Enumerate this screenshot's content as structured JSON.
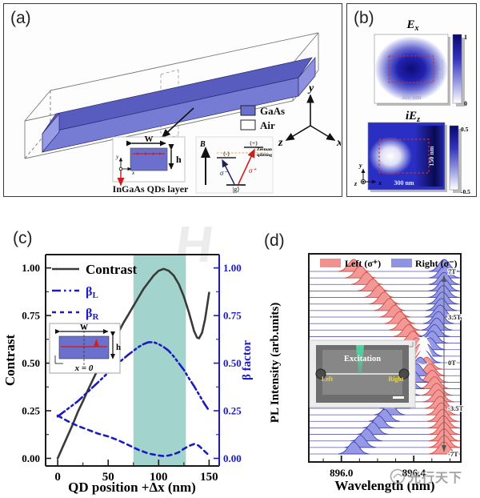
{
  "panels": {
    "a": {
      "label": "(a)",
      "legend": [
        {
          "label": "GaAs",
          "color": "#6a70cc"
        },
        {
          "label": "Air",
          "color": "#ffffff"
        }
      ],
      "axes": {
        "x": "x",
        "y": "y",
        "z": "z"
      },
      "inset_cross_section": {
        "width_label": "W",
        "height_label": "h",
        "axis_x": "x",
        "axis_y": "y",
        "caption": "InGaAs QDs layer"
      },
      "inset_zeeman": {
        "b_label": "B",
        "upper_minus": "(-)",
        "upper_plus": "(+)",
        "sigma_minus": "σ⁻",
        "sigma_plus": "σ⁺",
        "ground": "|g⟩",
        "splitting_line1": "Zeeman",
        "splitting_line2": "splitting"
      }
    },
    "b": {
      "label": "(b)",
      "maps": [
        {
          "title_main": "E",
          "title_sub": "x",
          "scale_w": "300 nm",
          "scale_h": "150 nm",
          "cbar_max": "1",
          "cbar_min": "0"
        },
        {
          "title_main": "iE",
          "title_sub": "z",
          "scale_w": "300 nm",
          "scale_h": "150 nm",
          "cbar_max": "0.5",
          "cbar_min": "-0.5"
        }
      ],
      "axes": {
        "x": "x",
        "y": "y",
        "z": "z"
      }
    },
    "c": {
      "label": "(c)",
      "legend": {
        "contrast": "Contrast",
        "beta_base": "β",
        "beta_L_sub": "L",
        "beta_R_sub": "R"
      },
      "inset": {
        "width_label": "W",
        "height_label": "h",
        "origin_label": "x = 0"
      },
      "ylabel_left": "Contrast",
      "ylabel_right": "β factor",
      "xlabel": "QD position  +Δx (nm)"
    },
    "d": {
      "label": "(d)",
      "legend": [
        {
          "name": "Left (σ⁺)",
          "color": "#f2928e"
        },
        {
          "name": "Right (σ⁻)",
          "color": "#9093e2"
        }
      ],
      "inset": {
        "excitation": "Excitation",
        "left": "Left",
        "right": "Right"
      },
      "ylabel": "PL Intensity (arb.units)",
      "xlabel": "Wavelength (nm)"
    }
  },
  "watermarks": {
    "h_mark": "H",
    "footer": "光行天下"
  },
  "chart_data": [
    {
      "id": "panel-c",
      "type": "line",
      "xlabel": "QD position +Δx (nm)",
      "ylabel_left": "Contrast",
      "ylabel_right": "β factor",
      "xlim": [
        -12,
        160
      ],
      "ylim": [
        -0.04,
        1.07
      ],
      "xticks": [
        0,
        50,
        100,
        150
      ],
      "xticks_minor": [
        25,
        75,
        125
      ],
      "yticks": [
        0.0,
        0.25,
        0.5,
        0.75,
        1.0
      ],
      "ytick_labels": [
        "0.00",
        "0.25",
        "0.50",
        "0.75",
        "1.00"
      ],
      "yticks_minor": [
        0.125,
        0.375,
        0.625,
        0.875
      ],
      "shaded_region": {
        "x0": 75,
        "x1": 127,
        "color": "#a2d4cd"
      },
      "series": [
        {
          "name": "Contrast",
          "style": "solid",
          "color": "#3a3a3a",
          "points": [
            [
              0,
              0.0
            ],
            [
              5,
              0.06
            ],
            [
              10,
              0.12
            ],
            [
              15,
              0.18
            ],
            [
              20,
              0.245
            ],
            [
              25,
              0.3
            ],
            [
              30,
              0.36
            ],
            [
              35,
              0.415
            ],
            [
              40,
              0.47
            ],
            [
              45,
              0.52
            ],
            [
              50,
              0.565
            ],
            [
              55,
              0.615
            ],
            [
              60,
              0.66
            ],
            [
              65,
              0.71
            ],
            [
              70,
              0.755
            ],
            [
              75,
              0.8
            ],
            [
              80,
              0.845
            ],
            [
              85,
              0.89
            ],
            [
              90,
              0.925
            ],
            [
              95,
              0.96
            ],
            [
              100,
              0.985
            ],
            [
              105,
              0.995
            ],
            [
              110,
              0.985
            ],
            [
              115,
              0.96
            ],
            [
              120,
              0.915
            ],
            [
              125,
              0.85
            ],
            [
              130,
              0.765
            ],
            [
              135,
              0.67
            ],
            [
              138,
              0.635
            ],
            [
              140,
              0.63
            ],
            [
              143,
              0.66
            ],
            [
              146,
              0.73
            ],
            [
              148,
              0.8
            ],
            [
              150,
              0.87
            ]
          ]
        },
        {
          "name": "βL",
          "style": "dashdot",
          "color": "#1b1bc0",
          "points": [
            [
              0,
              0.22
            ],
            [
              10,
              0.26
            ],
            [
              20,
              0.3
            ],
            [
              30,
              0.35
            ],
            [
              40,
              0.4
            ],
            [
              50,
              0.45
            ],
            [
              60,
              0.5
            ],
            [
              70,
              0.545
            ],
            [
              80,
              0.585
            ],
            [
              85,
              0.6
            ],
            [
              90,
              0.61
            ],
            [
              95,
              0.61
            ],
            [
              100,
              0.6
            ],
            [
              105,
              0.585
            ],
            [
              110,
              0.565
            ],
            [
              115,
              0.535
            ],
            [
              120,
              0.5
            ],
            [
              125,
              0.465
            ],
            [
              130,
              0.42
            ],
            [
              135,
              0.38
            ],
            [
              140,
              0.335
            ],
            [
              145,
              0.29
            ],
            [
              150,
              0.25
            ]
          ]
        },
        {
          "name": "βR",
          "style": "dashed",
          "color": "#1b1bc0",
          "points": [
            [
              0,
              0.225
            ],
            [
              10,
              0.195
            ],
            [
              20,
              0.17
            ],
            [
              30,
              0.15
            ],
            [
              40,
              0.13
            ],
            [
              50,
              0.115
            ],
            [
              60,
              0.095
            ],
            [
              70,
              0.07
            ],
            [
              80,
              0.045
            ],
            [
              90,
              0.025
            ],
            [
              100,
              0.015
            ],
            [
              105,
              0.012
            ],
            [
              110,
              0.015
            ],
            [
              115,
              0.022
            ],
            [
              120,
              0.032
            ],
            [
              125,
              0.05
            ],
            [
              130,
              0.065
            ],
            [
              135,
              0.075
            ],
            [
              138,
              0.072
            ],
            [
              140,
              0.065
            ],
            [
              145,
              0.04
            ],
            [
              150,
              0.015
            ]
          ]
        }
      ]
    },
    {
      "id": "panel-d",
      "type": "ridgeline",
      "xlabel": "Wavelength (nm)",
      "ylabel": "PL Intensity (arb.units)",
      "xlim": [
        895.82,
        896.66
      ],
      "xticks": [
        896.0,
        896.4
      ],
      "xtick_labels": [
        "896.0",
        "896.4"
      ],
      "xticks_minor": [
        895.9,
        896.1,
        896.2,
        896.3,
        896.5,
        896.6
      ],
      "field_labels": [
        {
          "B": 7,
          "label": "7T"
        },
        {
          "B": 3.5,
          "label": "3.5T"
        },
        {
          "B": 0,
          "label": "0T"
        },
        {
          "B": -3.5,
          "label": "-3.5T"
        },
        {
          "B": -7,
          "label": "-7T"
        }
      ],
      "series_legend": [
        {
          "name": "Left (σ⁺)",
          "color": "#f2928e"
        },
        {
          "name": "Right (σ⁻)",
          "color": "#9093e2"
        }
      ],
      "traces": [
        {
          "B": 7,
          "left": 896.068,
          "right": 896.568
        },
        {
          "B": 6.5,
          "left": 896.105,
          "right": 896.569
        },
        {
          "B": 6,
          "left": 896.14,
          "right": 896.568
        },
        {
          "B": 5.5,
          "left": 896.174,
          "right": 896.567
        },
        {
          "B": 5,
          "left": 896.207,
          "right": 896.564
        },
        {
          "B": 4.5,
          "left": 896.238,
          "right": 896.559
        },
        {
          "B": 4,
          "left": 896.267,
          "right": 896.553
        },
        {
          "B": 3.5,
          "left": 896.296,
          "right": 896.546
        },
        {
          "B": 3,
          "left": 896.323,
          "right": 896.537
        },
        {
          "B": 2.5,
          "left": 896.348,
          "right": 896.527
        },
        {
          "B": 2,
          "left": 896.372,
          "right": 896.515
        },
        {
          "B": 1.5,
          "left": 896.395,
          "right": 896.502
        },
        {
          "B": 1,
          "left": 896.417,
          "right": 896.488
        },
        {
          "B": 0.5,
          "left": 896.436,
          "right": 896.472
        },
        {
          "B": 0,
          "left": 896.447,
          "right": 896.463
        },
        {
          "B": -0.5,
          "left": 896.472,
          "right": 896.436
        },
        {
          "B": -1,
          "left": 896.488,
          "right": 896.417
        },
        {
          "B": -1.5,
          "left": 896.502,
          "right": 896.395
        },
        {
          "B": -2,
          "left": 896.515,
          "right": 896.372
        },
        {
          "B": -2.5,
          "left": 896.527,
          "right": 896.348
        },
        {
          "B": -3,
          "left": 896.537,
          "right": 896.323
        },
        {
          "B": -3.5,
          "left": 896.546,
          "right": 896.296
        },
        {
          "B": -4,
          "left": 896.553,
          "right": 896.267
        },
        {
          "B": -4.5,
          "left": 896.559,
          "right": 896.238
        },
        {
          "B": -5,
          "left": 896.564,
          "right": 896.207
        },
        {
          "B": -5.5,
          "left": 896.567,
          "right": 896.174
        },
        {
          "B": -6,
          "left": 896.568,
          "right": 896.14
        },
        {
          "B": -6.5,
          "left": 896.569,
          "right": 896.105
        },
        {
          "B": -7,
          "left": 896.568,
          "right": 896.068
        }
      ]
    }
  ]
}
